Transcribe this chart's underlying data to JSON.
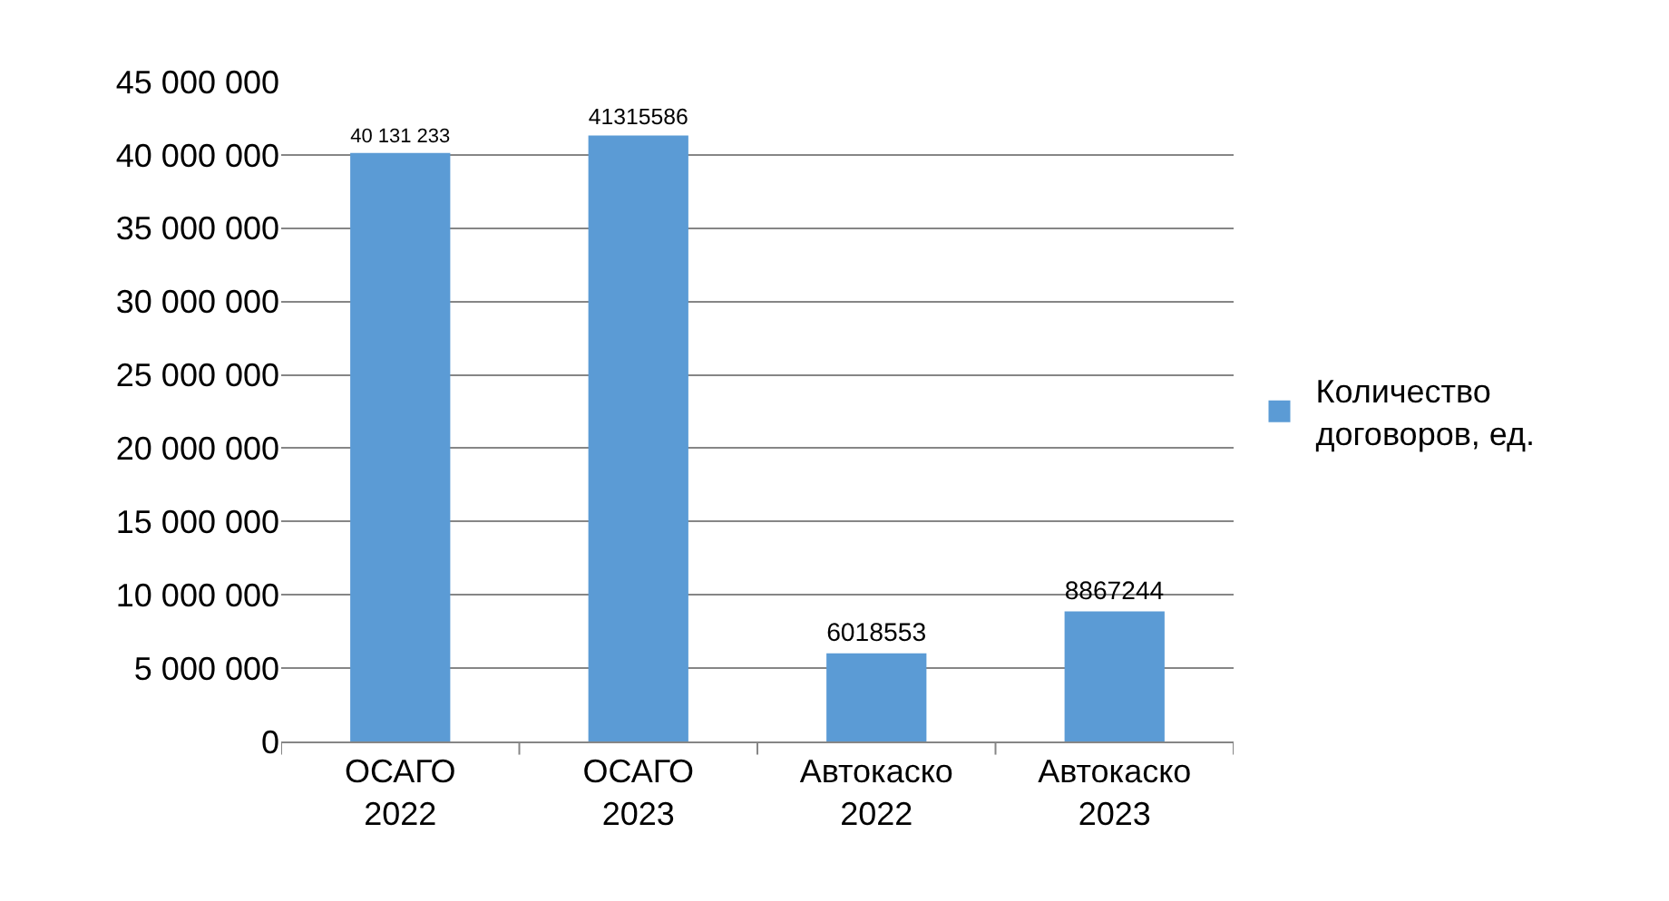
{
  "chart_data": {
    "type": "bar",
    "categories": [
      "ОСАГО 2022",
      "ОСАГО 2023",
      "Автокаско 2022",
      "Автокаско 2023"
    ],
    "series": [
      {
        "name": "Количество договоров, ед.",
        "color": "#5b9bd5",
        "values": [
          40131233,
          41315586,
          6018553,
          8867244
        ],
        "value_labels": [
          "40 131 233",
          "41315586",
          "6018553",
          "8867244"
        ]
      }
    ],
    "ylim": [
      0,
      45000000
    ],
    "yticks": [
      0,
      {
        "value": 5000000,
        "label": "5 000 000"
      },
      {
        "value": 10000000,
        "label": "10 000 000"
      },
      {
        "value": 15000000,
        "label": "15 000 000"
      },
      {
        "value": 20000000,
        "label": "20 000 000"
      },
      {
        "value": 25000000,
        "label": "25 000 000"
      },
      {
        "value": 30000000,
        "label": "30 000 000"
      },
      {
        "value": 35000000,
        "label": "35 000 000"
      },
      {
        "value": 40000000,
        "label": "40 000 000"
      },
      {
        "value": 45000000,
        "label": "45 000 000"
      }
    ],
    "grid": "y",
    "legend": "right"
  }
}
